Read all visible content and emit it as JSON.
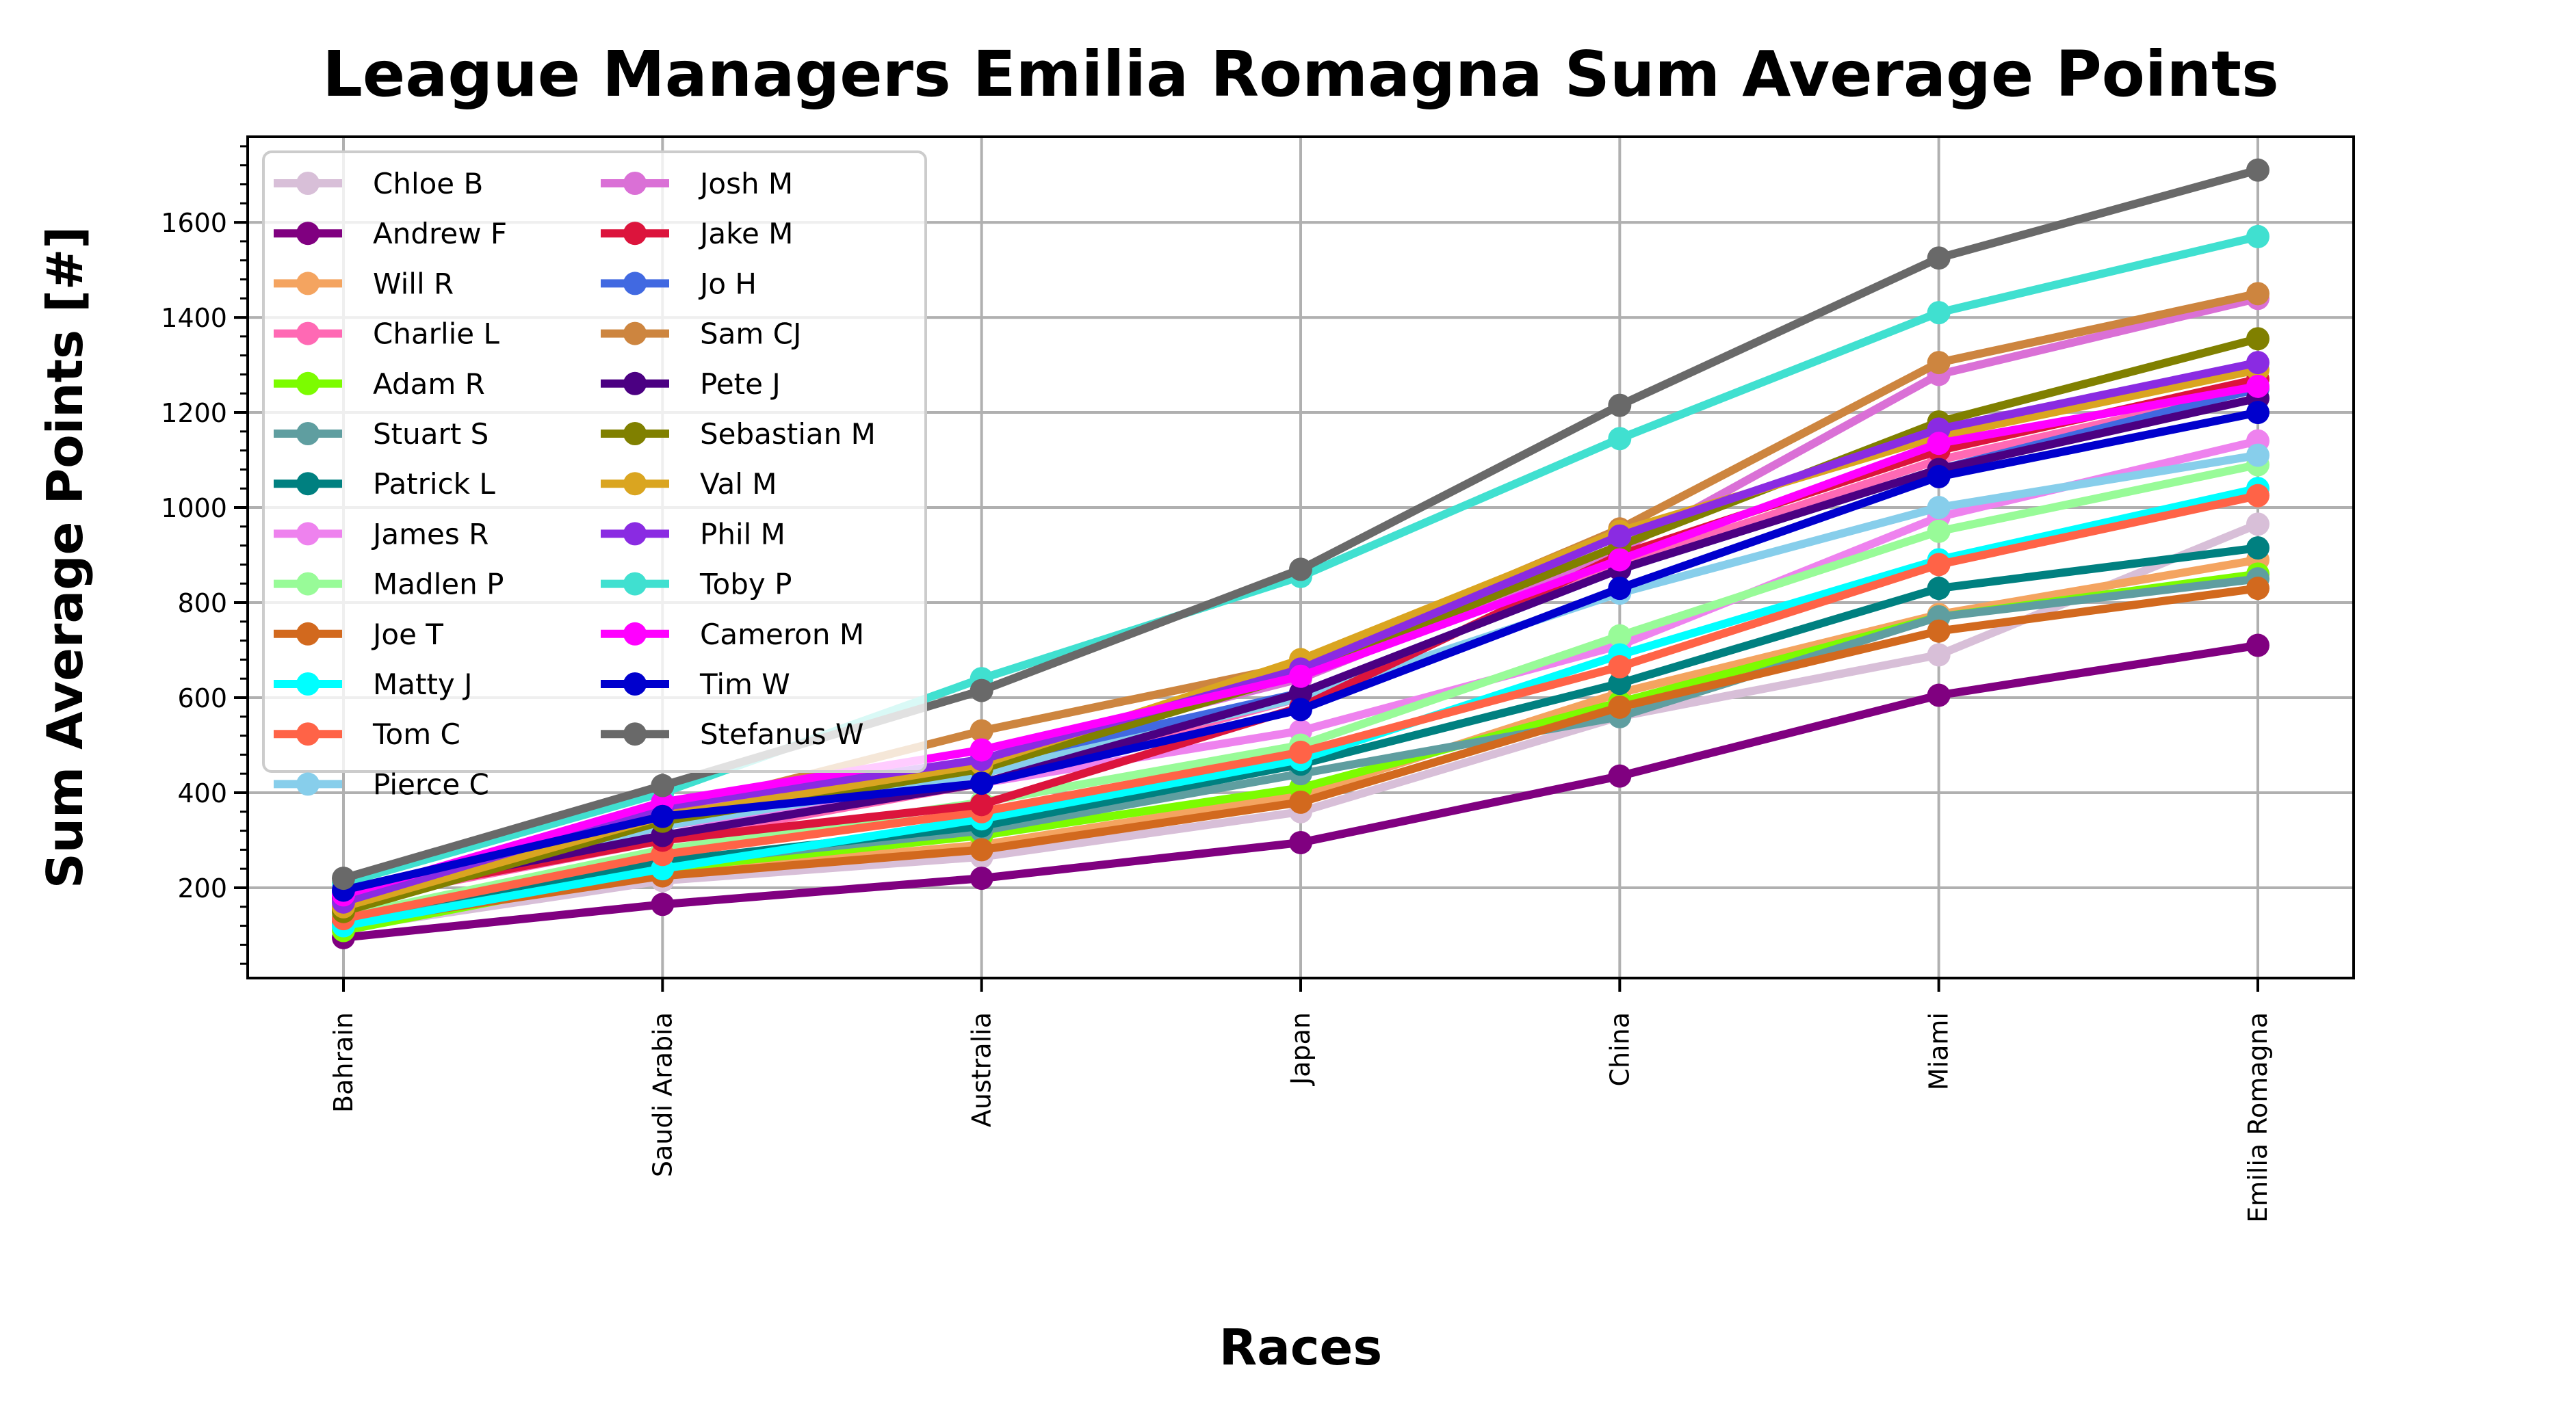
{
  "chart_data": {
    "type": "line",
    "title": "League Managers Emilia Romagna Sum Average Points",
    "xlabel": "Races",
    "ylabel": "Sum Average Points [#]",
    "categories": [
      "Bahrain",
      "Saudi Arabia",
      "Australia",
      "Japan",
      "China",
      "Miami",
      "Emilia Romagna"
    ],
    "ylim": [
      10,
      1780
    ],
    "yticks": [
      200,
      400,
      600,
      800,
      1000,
      1200,
      1400,
      1600
    ],
    "grid": true,
    "legend_position": "top-left",
    "series": [
      {
        "name": "Chloe B",
        "color": "#d8bfd8",
        "values": [
          115,
          215,
          265,
          360,
          560,
          690,
          965
        ]
      },
      {
        "name": "Andrew F",
        "color": "#800080",
        "values": [
          95,
          165,
          220,
          295,
          435,
          605,
          710
        ]
      },
      {
        "name": "Will R",
        "color": "#f4a460",
        "values": [
          150,
          230,
          290,
          395,
          610,
          775,
          890
        ]
      },
      {
        "name": "Charlie L",
        "color": "#ff69b4",
        "values": [
          170,
          300,
          420,
          600,
          880,
          1100,
          1250
        ]
      },
      {
        "name": "Adam R",
        "color": "#7cfc00",
        "values": [
          110,
          240,
          310,
          410,
          590,
          770,
          860
        ]
      },
      {
        "name": "Stuart S",
        "color": "#5f9ea0",
        "values": [
          130,
          250,
          320,
          440,
          560,
          770,
          850
        ]
      },
      {
        "name": "Patrick L",
        "color": "#008080",
        "values": [
          140,
          255,
          330,
          460,
          630,
          830,
          915
        ]
      },
      {
        "name": "James R",
        "color": "#ee82ee",
        "values": [
          160,
          330,
          420,
          530,
          710,
          980,
          1140
        ]
      },
      {
        "name": "Madlen P",
        "color": "#98fb98",
        "values": [
          140,
          280,
          380,
          500,
          730,
          950,
          1090
        ]
      },
      {
        "name": "Joe T",
        "color": "#d2691e",
        "values": [
          125,
          225,
          280,
          380,
          580,
          740,
          830
        ]
      },
      {
        "name": "Matty J",
        "color": "#00ffff",
        "values": [
          120,
          240,
          345,
          470,
          690,
          890,
          1040
        ]
      },
      {
        "name": "Tom C",
        "color": "#ff6347",
        "values": [
          135,
          270,
          360,
          485,
          665,
          880,
          1025
        ]
      },
      {
        "name": "Pierce C",
        "color": "#87ceeb",
        "values": [
          165,
          330,
          440,
          600,
          820,
          1000,
          1110
        ]
      },
      {
        "name": "Josh M",
        "color": "#da70d6",
        "values": [
          170,
          360,
          470,
          640,
          910,
          1280,
          1440
        ]
      },
      {
        "name": "Jake M",
        "color": "#dc143c",
        "values": [
          175,
          300,
          375,
          580,
          900,
          1120,
          1270
        ]
      },
      {
        "name": "Jo H",
        "color": "#4169e1",
        "values": [
          190,
          340,
          460,
          610,
          870,
          1080,
          1250
        ]
      },
      {
        "name": "Sam CJ",
        "color": "#cd853f",
        "values": [
          155,
          360,
          530,
          670,
          955,
          1305,
          1450
        ]
      },
      {
        "name": "Pete J",
        "color": "#4b0082",
        "values": [
          180,
          310,
          420,
          610,
          870,
          1080,
          1230
        ]
      },
      {
        "name": "Sebastian M",
        "color": "#808000",
        "values": [
          150,
          340,
          450,
          650,
          920,
          1180,
          1355
        ]
      },
      {
        "name": "Val M",
        "color": "#daa520",
        "values": [
          160,
          350,
          460,
          680,
          950,
          1150,
          1290
        ]
      },
      {
        "name": "Phil M",
        "color": "#8a2be2",
        "values": [
          170,
          370,
          470,
          660,
          940,
          1165,
          1305
        ]
      },
      {
        "name": "Toby P",
        "color": "#40e0d0",
        "values": [
          210,
          400,
          640,
          855,
          1145,
          1410,
          1570
        ]
      },
      {
        "name": "Cameron M",
        "color": "#ff00ff",
        "values": [
          185,
          380,
          490,
          645,
          890,
          1135,
          1255
        ]
      },
      {
        "name": "Tim W",
        "color": "#0000cd",
        "values": [
          195,
          350,
          420,
          575,
          830,
          1065,
          1200
        ]
      },
      {
        "name": "Stefanus W",
        "color": "#696969",
        "values": [
          220,
          415,
          615,
          870,
          1215,
          1525,
          1710
        ]
      }
    ]
  }
}
